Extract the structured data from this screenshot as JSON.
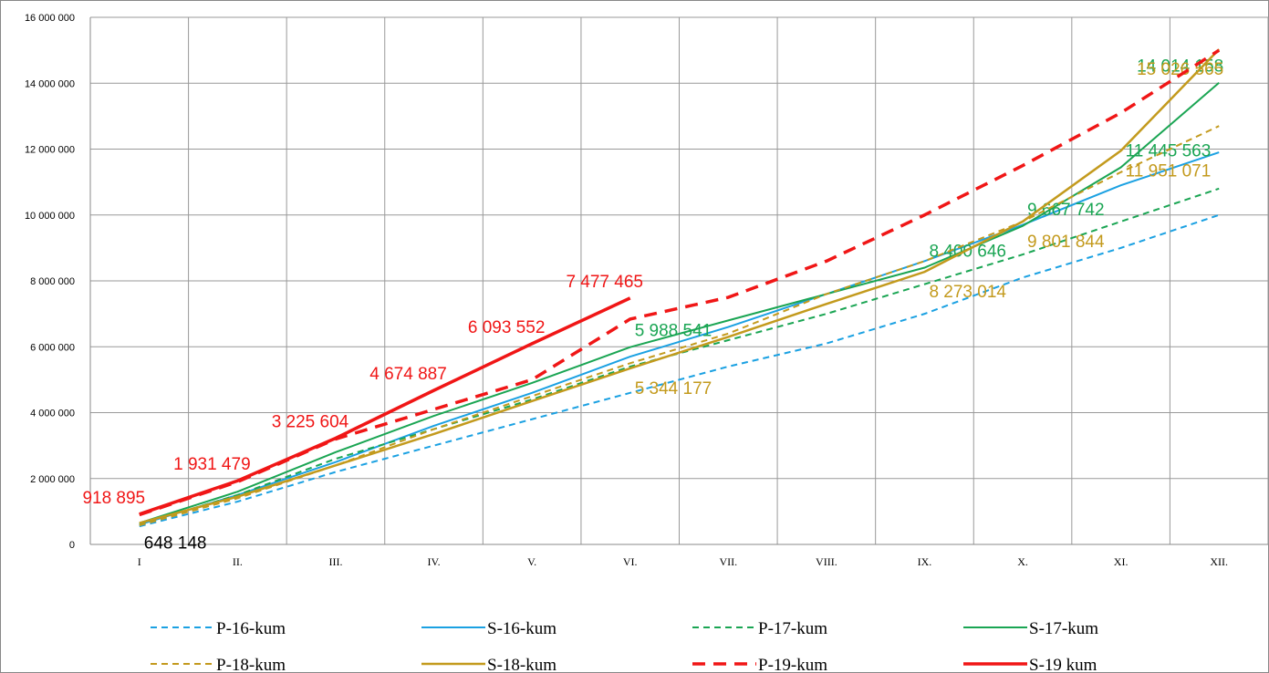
{
  "chart_data": {
    "type": "line",
    "categories": [
      "I",
      "II.",
      "III.",
      "IV.",
      "V.",
      "VI.",
      "VII.",
      "VIII.",
      "IX.",
      "X.",
      "XI.",
      "XII."
    ],
    "ylim": [
      0,
      16000000
    ],
    "yticks": [
      0,
      {
        "value": 2000000,
        "label": "2 000 000"
      },
      {
        "value": 4000000,
        "label": "4 000 000"
      },
      {
        "value": 6000000,
        "label": "6 000 000"
      },
      {
        "value": 8000000,
        "label": "8 000 000"
      },
      {
        "value": 10000000,
        "label": "10 000 000"
      },
      {
        "value": 12000000,
        "label": "12 000 000"
      },
      {
        "value": 14000000,
        "label": "14 000 000"
      },
      {
        "value": 16000000,
        "label": "16 000 000"
      }
    ],
    "grid": true,
    "series": [
      {
        "name": "P-16-kum",
        "color": "#1ba1e2",
        "dash": true,
        "width": 2,
        "values": [
          550000,
          1300000,
          2200000,
          3000000,
          3800000,
          4600000,
          5400000,
          6100000,
          7000000,
          8100000,
          9000000,
          10000000
        ]
      },
      {
        "name": "S-16-kum",
        "color": "#1ba1e2",
        "dash": false,
        "width": 2,
        "values": [
          600000,
          1500000,
          2500000,
          3600000,
          4600000,
          5700000,
          6600000,
          7600000,
          8600000,
          9700000,
          10900000,
          11900000
        ]
      },
      {
        "name": "P-17-kum",
        "color": "#1aa553",
        "dash": true,
        "width": 2,
        "values": [
          600000,
          1500000,
          2600000,
          3500000,
          4400000,
          5400000,
          6200000,
          7000000,
          7900000,
          8800000,
          9800000,
          10800000
        ]
      },
      {
        "name": "S-17-kum",
        "color": "#1aa553",
        "dash": false,
        "width": 2,
        "values": [
          650000,
          1600000,
          2800000,
          3900000,
          4900000,
          5988541,
          6800000,
          7600000,
          8400646,
          9667742,
          11445563,
          14014158
        ],
        "value_labels": [
          null,
          null,
          null,
          null,
          null,
          "5 988 541",
          null,
          null,
          "8 400 646",
          "9 667 742",
          "11 445 563",
          "14 014 158"
        ]
      },
      {
        "name": "P-18-kum",
        "color": "#c39a1d",
        "dash": true,
        "width": 2,
        "values": [
          580000,
          1400000,
          2400000,
          3500000,
          4500000,
          5500000,
          6400000,
          7600000,
          8600000,
          9800000,
          11300000,
          12700000
        ]
      },
      {
        "name": "S-18-kum",
        "color": "#c39a1d",
        "dash": false,
        "width": 2.5,
        "values": [
          648148,
          1450000,
          2400000,
          3350000,
          4350000,
          5344177,
          6300000,
          7300000,
          8273014,
          9801844,
          11951071,
          15026565
        ],
        "value_labels": [
          "648 148",
          null,
          null,
          null,
          null,
          "5 344 177",
          null,
          null,
          "8 273 014",
          "9 801 844",
          "11 951 071",
          "15 026 565"
        ]
      },
      {
        "name": "P-19-kum",
        "color": "#f01616",
        "dash": true,
        "width": 3.5,
        "values": [
          900000,
          1900000,
          3200000,
          4100000,
          5000000,
          6840000,
          7500000,
          8600000,
          10000000,
          11500000,
          13100000,
          15000000
        ]
      },
      {
        "name": "S-19 kum",
        "color": "#f01616",
        "dash": false,
        "width": 3.5,
        "values": [
          918895,
          1931479,
          3225604,
          4674887,
          6093552,
          7477465,
          null,
          null,
          null,
          null,
          null,
          null
        ],
        "value_labels": [
          "918 895",
          "1 931 479",
          "3 225 604",
          "4 674 887",
          "6 093 552",
          "7 477 465",
          null,
          null,
          null,
          null,
          null,
          null
        ]
      }
    ]
  }
}
